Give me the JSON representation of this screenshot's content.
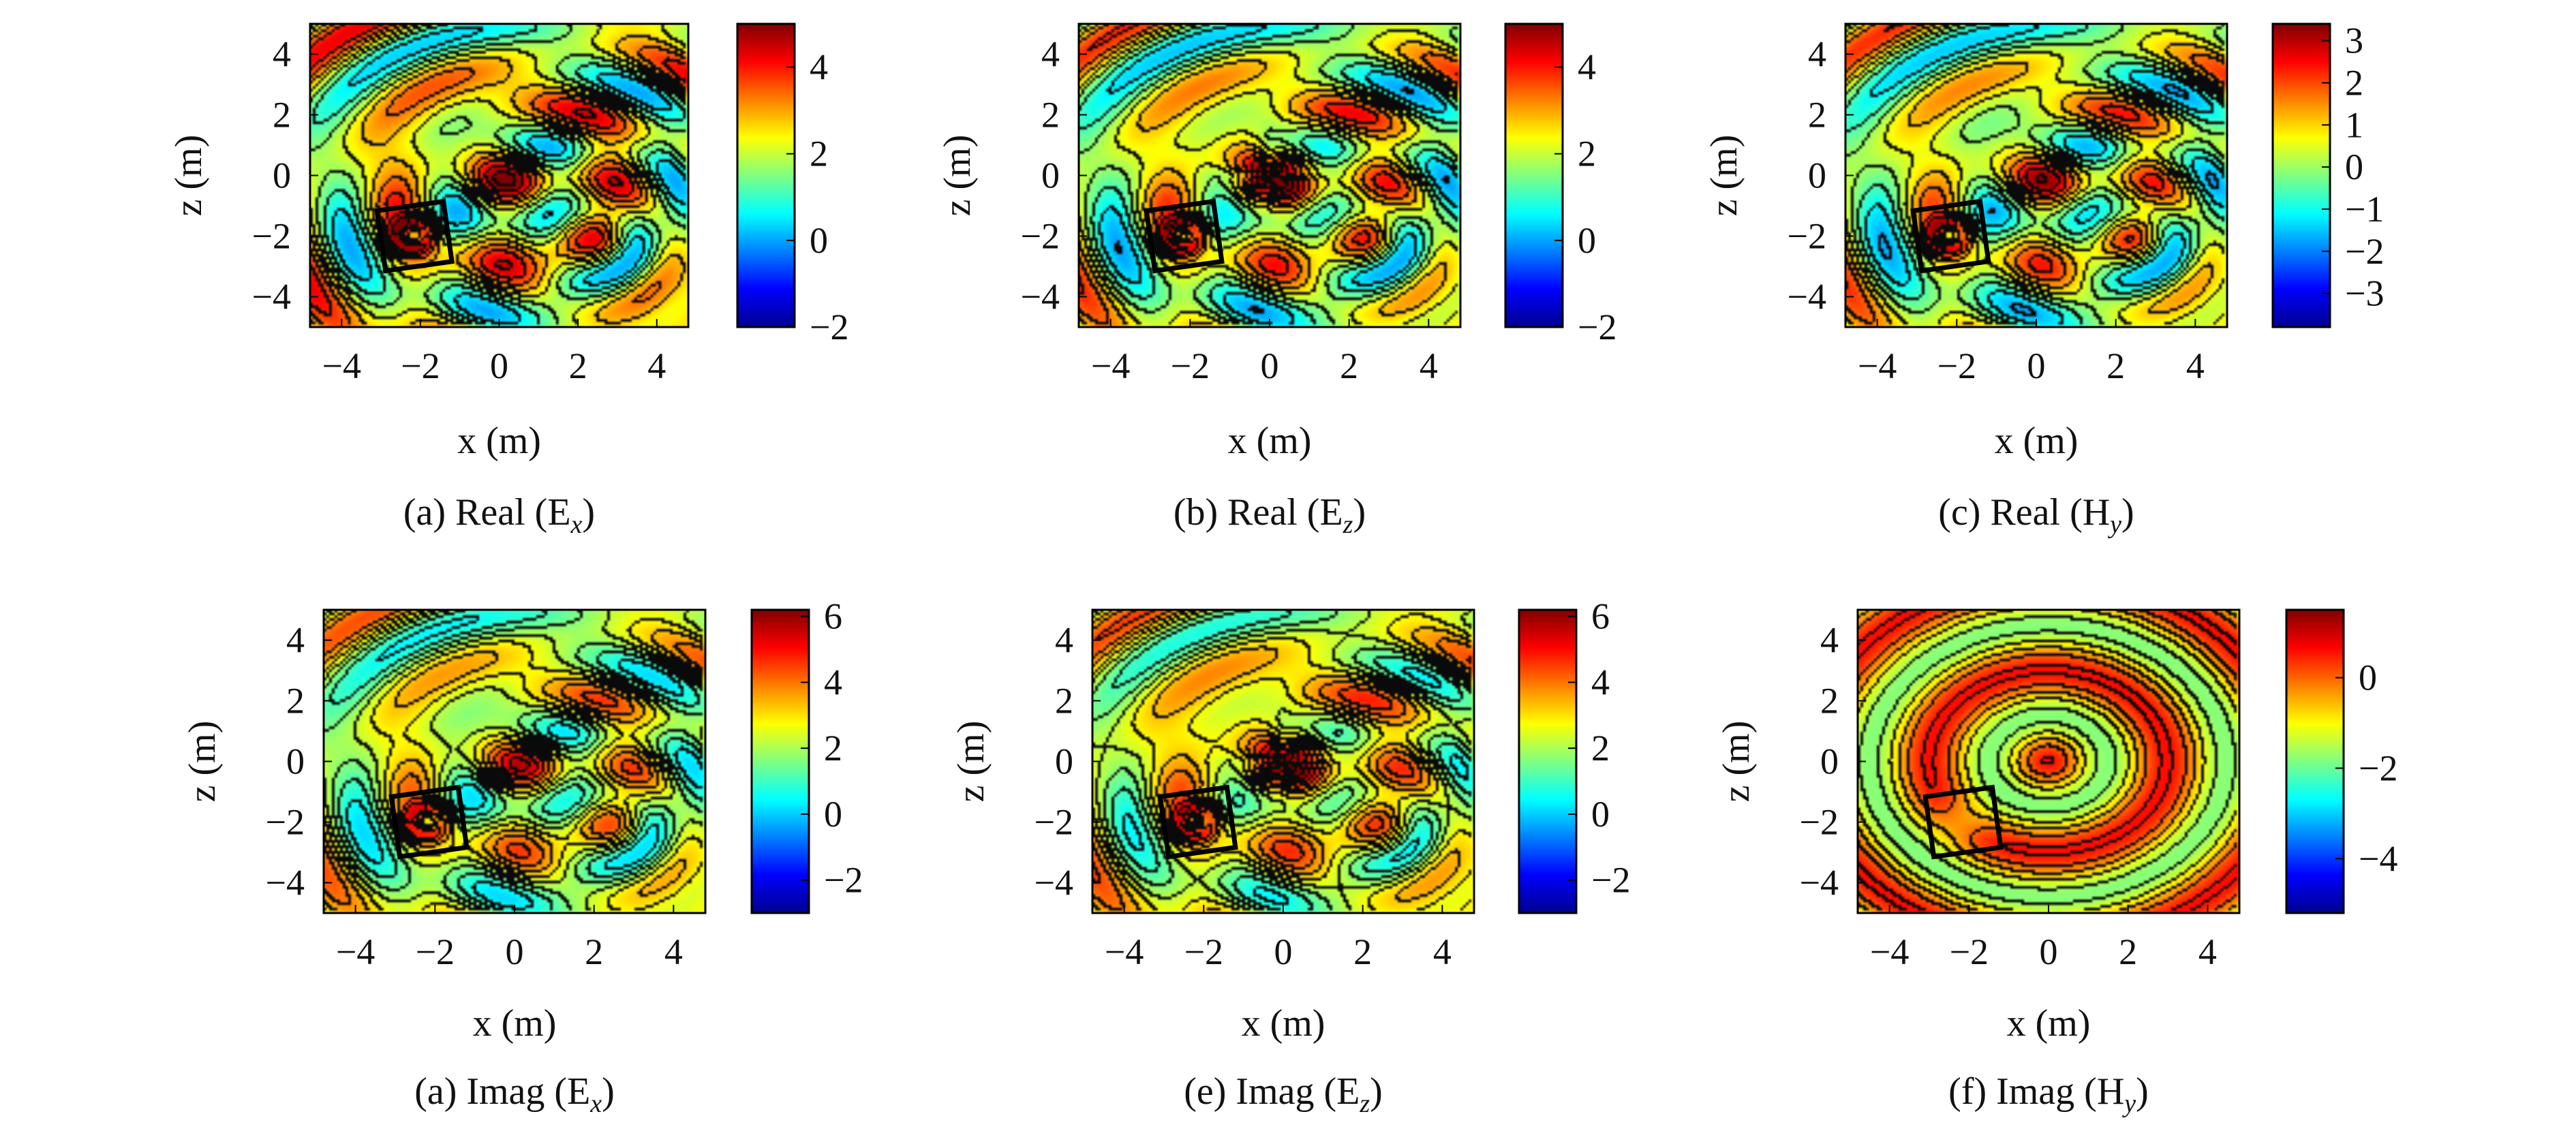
{
  "chart_data": [
    {
      "type": "heatmap",
      "title": "(a) Real (E",
      "title_sub": "x",
      "title_close": ")",
      "xlabel": "x (m)",
      "ylabel": "z (m)",
      "xlim": [
        -4.8,
        4.8
      ],
      "ylim": [
        -5,
        5
      ],
      "x_ticks": [
        "−4",
        "−2",
        "0",
        "2",
        "4"
      ],
      "y_ticks": [
        "4",
        "2",
        "0",
        "−2",
        "−4"
      ],
      "colorbar": {
        "range": [
          -2,
          5
        ],
        "ticks": [
          {
            "v": 4,
            "label": "4"
          },
          {
            "v": 2,
            "label": "2"
          },
          {
            "v": 0,
            "label": "0"
          },
          {
            "v": -2,
            "label": "−2"
          }
        ]
      },
      "field": {
        "base": 2.2,
        "amp": 1.6,
        "center_peak": 2.0,
        "dipole": false,
        "mode": "real"
      }
    },
    {
      "type": "heatmap",
      "title": "(b) Real (E",
      "title_sub": "z",
      "title_close": ")",
      "xlabel": "x (m)",
      "ylabel": "z (m)",
      "xlim": [
        -4.8,
        4.8
      ],
      "ylim": [
        -5,
        5
      ],
      "x_ticks": [
        "−4",
        "−2",
        "0",
        "2",
        "4"
      ],
      "y_ticks": [
        "4",
        "2",
        "0",
        "−2",
        "−4"
      ],
      "colorbar": {
        "range": [
          -2,
          5
        ],
        "ticks": [
          {
            "v": 4,
            "label": "4"
          },
          {
            "v": 2,
            "label": "2"
          },
          {
            "v": 0,
            "label": "0"
          },
          {
            "v": -2,
            "label": "−2"
          }
        ]
      },
      "field": {
        "base": 2.0,
        "amp": 1.4,
        "center_peak": 1.8,
        "dipole": true,
        "mode": "real"
      }
    },
    {
      "type": "heatmap",
      "title": "(c) Real (H",
      "title_sub": "y",
      "title_close": ")",
      "xlabel": "x (m)",
      "ylabel": "z (m)",
      "xlim": [
        -4.8,
        4.8
      ],
      "ylim": [
        -5,
        5
      ],
      "x_ticks": [
        "−4",
        "−2",
        "0",
        "2",
        "4"
      ],
      "y_ticks": [
        "4",
        "2",
        "0",
        "−2",
        "−4"
      ],
      "colorbar": {
        "range": [
          -3.8,
          3.4
        ],
        "ticks": [
          {
            "v": 3,
            "label": "3"
          },
          {
            "v": 2,
            "label": "2"
          },
          {
            "v": 1,
            "label": "1"
          },
          {
            "v": 0,
            "label": "0"
          },
          {
            "v": -1,
            "label": "−1"
          },
          {
            "v": -2,
            "label": "−2"
          },
          {
            "v": -3,
            "label": "−3"
          }
        ]
      },
      "field": {
        "base": 0.3,
        "amp": 1.4,
        "center_peak": 2.2,
        "dipole": false,
        "mode": "real"
      }
    },
    {
      "type": "heatmap",
      "title": "(a) Imag (E",
      "title_sub": "x",
      "title_close": ")",
      "xlabel": "x (m)",
      "ylabel": "z (m)",
      "xlim": [
        -4.8,
        4.8
      ],
      "ylim": [
        -5,
        5
      ],
      "x_ticks": [
        "−4",
        "−2",
        "0",
        "2",
        "4"
      ],
      "y_ticks": [
        "4",
        "2",
        "0",
        "−2",
        "−4"
      ],
      "colorbar": {
        "range": [
          -3,
          6.2
        ],
        "ticks": [
          {
            "v": 6,
            "label": "6"
          },
          {
            "v": 4,
            "label": "4"
          },
          {
            "v": 2,
            "label": "2"
          },
          {
            "v": 0,
            "label": "0"
          },
          {
            "v": -2,
            "label": "−2"
          }
        ]
      },
      "field": {
        "base": 2.3,
        "amp": 1.6,
        "center_peak": 2.4,
        "dipole": false,
        "mode": "imag"
      }
    },
    {
      "type": "heatmap",
      "title": "(e) Imag (E",
      "title_sub": "z",
      "title_close": ")",
      "xlabel": "x (m)",
      "ylabel": "z (m)",
      "xlim": [
        -4.8,
        4.8
      ],
      "ylim": [
        -5,
        5
      ],
      "x_ticks": [
        "−4",
        "−2",
        "0",
        "2",
        "4"
      ],
      "y_ticks": [
        "4",
        "2",
        "0",
        "−2",
        "−4"
      ],
      "colorbar": {
        "range": [
          -3,
          6.2
        ],
        "ticks": [
          {
            "v": 6,
            "label": "6"
          },
          {
            "v": 4,
            "label": "4"
          },
          {
            "v": 2,
            "label": "2"
          },
          {
            "v": 0,
            "label": "0"
          },
          {
            "v": -2,
            "label": "−2"
          }
        ]
      },
      "field": {
        "base": 2.5,
        "amp": 1.5,
        "center_peak": 2.2,
        "dipole": true,
        "mode": "imag"
      }
    },
    {
      "type": "heatmap",
      "title": "(f) Imag (H",
      "title_sub": "y",
      "title_close": ")",
      "xlabel": "x (m)",
      "ylabel": "z (m)",
      "xlim": [
        -4.8,
        4.8
      ],
      "ylim": [
        -5,
        5
      ],
      "x_ticks": [
        "−4",
        "−2",
        "0",
        "2",
        "4"
      ],
      "y_ticks": [
        "4",
        "2",
        "0",
        "−2",
        "−4"
      ],
      "colorbar": {
        "range": [
          -5.2,
          1.5
        ],
        "ticks": [
          {
            "v": 0,
            "label": "0"
          },
          {
            "v": -2,
            "label": "−2"
          },
          {
            "v": -4,
            "label": "−4"
          }
        ]
      },
      "field": {
        "base": 0.0,
        "amp": 1.0,
        "center_peak": 1.0,
        "dipole": false,
        "mode": "imagH"
      }
    }
  ]
}
